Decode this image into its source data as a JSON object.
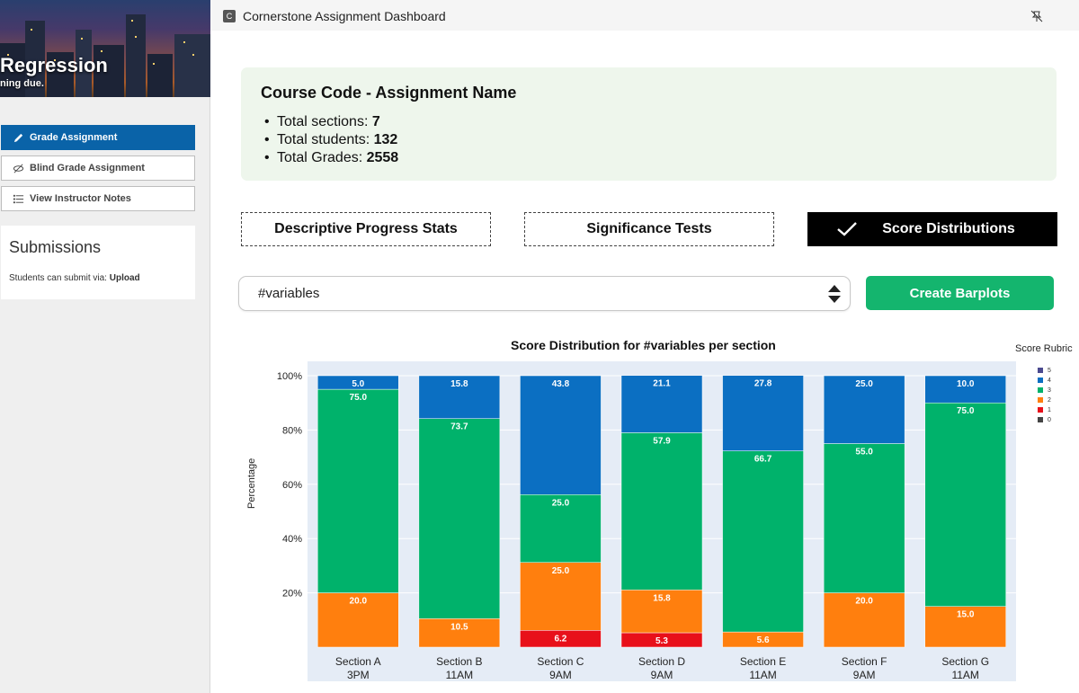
{
  "hero": {
    "title": "Regression",
    "subtitle": "ning due."
  },
  "sidebar": {
    "grade_label": "Grade Assignment",
    "blind_grade_label": "Blind Grade Assignment",
    "notes_label": "View Instructor Notes",
    "submissions_title": "Submissions",
    "submissions_text": "Students can submit via: ",
    "submissions_method": "Upload"
  },
  "window": {
    "icon_letter": "C",
    "title": "Cornerstone Assignment Dashboard"
  },
  "summary": {
    "title": "Course Code - Assignment Name",
    "bullet": "•",
    "sections_label": "Total sections: ",
    "sections_value": "7",
    "students_label": "Total students: ",
    "students_value": "132",
    "grades_label": "Total Grades: ",
    "grades_value": "2558"
  },
  "tabs": {
    "descriptive": "Descriptive Progress Stats",
    "significance": "Significance Tests",
    "distributions": "Score Distributions"
  },
  "selector": {
    "value": "#variables"
  },
  "actions": {
    "create_label": "Create Barplots"
  },
  "colors": {
    "score_5": "#4b4a8f",
    "score_4": "#0b6fc2",
    "score_3": "#00b26b",
    "score_2": "#ff7f0e",
    "score_1": "#e8101a",
    "score_0": "#444444",
    "accent": "#14b56e",
    "primary": "#0a63a8"
  },
  "chart_data": {
    "type": "bar",
    "stacked": true,
    "title": "Score Distribution for #variables per section",
    "ylabel": "Percentage",
    "legend_title": "Score Rubric",
    "legend_position": "right",
    "legend_entries": [
      "5",
      "4",
      "3",
      "2",
      "1",
      "0"
    ],
    "y_ticks": [
      "20%",
      "40%",
      "60%",
      "80%",
      "100%"
    ],
    "ylim": [
      0,
      100
    ],
    "categories": [
      {
        "name": "Section A",
        "time": "3PM"
      },
      {
        "name": "Section B",
        "time": "11AM"
      },
      {
        "name": "Section C",
        "time": "9AM"
      },
      {
        "name": "Section D",
        "time": "9AM"
      },
      {
        "name": "Section E",
        "time": "11AM"
      },
      {
        "name": "Section F",
        "time": "9AM"
      },
      {
        "name": "Section G",
        "time": "11AM"
      }
    ],
    "series": [
      {
        "name": "1",
        "values": [
          0,
          0,
          6.2,
          5.3,
          0,
          0,
          0
        ],
        "labels": [
          "",
          "",
          "6.2",
          "5.3",
          "",
          "",
          ""
        ]
      },
      {
        "name": "2",
        "values": [
          20.0,
          10.5,
          25.0,
          15.8,
          5.6,
          20.0,
          15.0
        ],
        "labels": [
          "20.0",
          "10.5",
          "25.0",
          "15.8",
          "5.6",
          "20.0",
          "15.0"
        ]
      },
      {
        "name": "3",
        "values": [
          75.0,
          73.7,
          25.0,
          57.9,
          66.7,
          55.0,
          75.0
        ],
        "labels": [
          "75.0",
          "73.7",
          "25.0",
          "57.9",
          "66.7",
          "55.0",
          "75.0"
        ]
      },
      {
        "name": "4",
        "values": [
          5.0,
          15.8,
          43.8,
          21.1,
          27.8,
          25.0,
          10.0
        ],
        "labels": [
          "5.0",
          "15.8",
          "43.8",
          "21.1",
          "27.8",
          "25.0",
          "10.0"
        ]
      }
    ]
  }
}
